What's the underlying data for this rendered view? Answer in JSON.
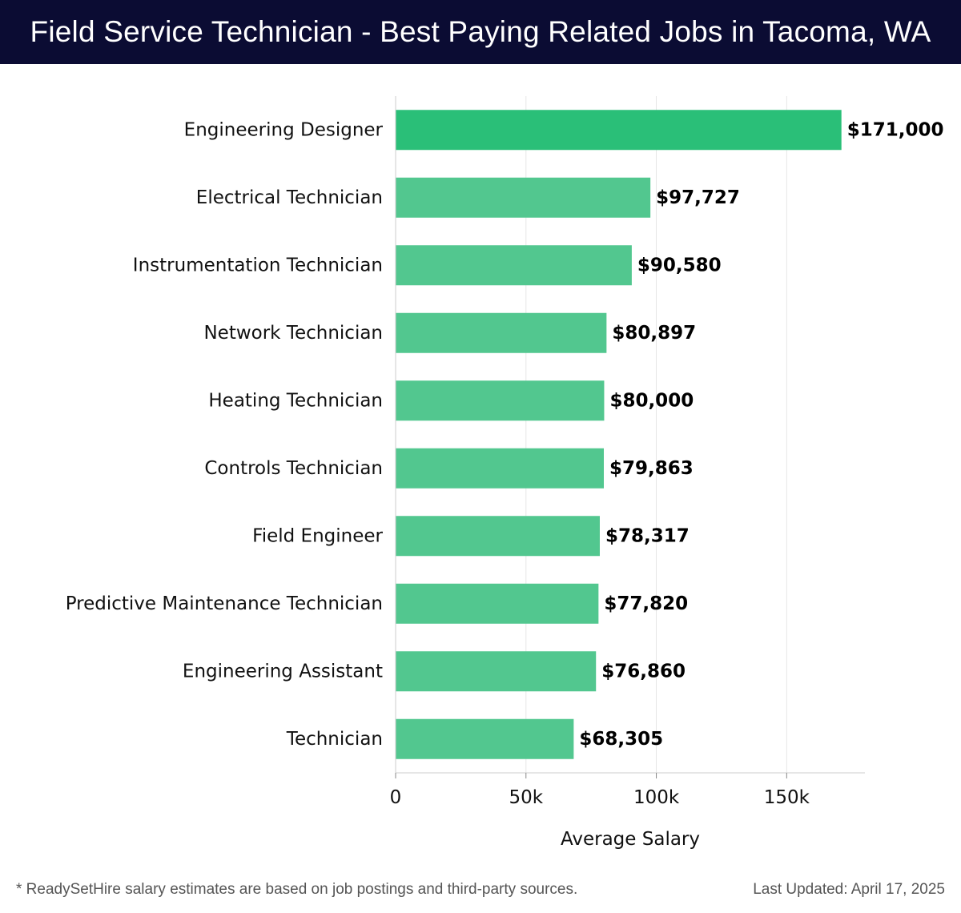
{
  "header": {
    "title": "Field Service Technician - Best Paying Related Jobs in Tacoma, WA"
  },
  "chart_data": {
    "type": "bar",
    "orientation": "horizontal",
    "categories": [
      "Engineering Designer",
      "Electrical Technician",
      "Instrumentation Technician",
      "Network Technician",
      "Heating Technician",
      "Controls Technician",
      "Field Engineer",
      "Predictive Maintenance Technician",
      "Engineering Assistant",
      "Technician"
    ],
    "values": [
      171000,
      97727,
      90580,
      80897,
      80000,
      79863,
      78317,
      77820,
      76860,
      68305
    ],
    "value_labels": [
      "$171,000",
      "$97,727",
      "$90,580",
      "$80,897",
      "$80,000",
      "$79,863",
      "$78,317",
      "$77,820",
      "$76,860",
      "$68,305"
    ],
    "xlabel": "Average Salary",
    "ylabel": "",
    "xlim": [
      0,
      180000
    ],
    "xticks": [
      0,
      50000,
      100000,
      150000
    ],
    "xtick_labels": [
      "0",
      "50k",
      "100k",
      "150k"
    ],
    "grid": "vertical",
    "colors": {
      "top_bar": "#2abf78",
      "bar": "#52c78f",
      "grid": "#e6e6e6",
      "axis": "#cccccc"
    }
  },
  "footer": {
    "note": "* ReadySetHire salary estimates are based on job postings and third-party sources.",
    "updated": "Last Updated: April 17, 2025"
  }
}
